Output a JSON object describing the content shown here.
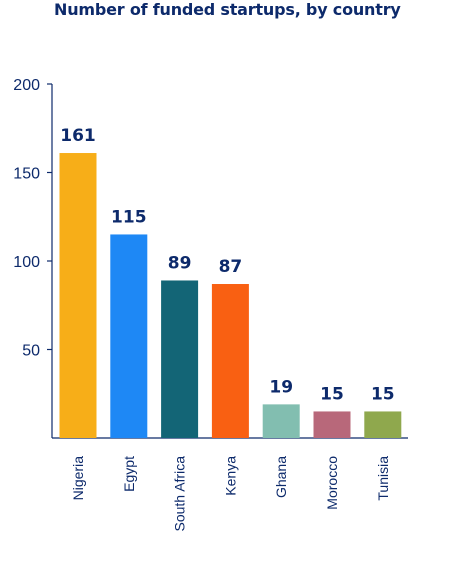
{
  "chart_data": {
    "type": "bar",
    "title": "Number of funded startups, by country",
    "xlabel": "",
    "ylabel": "",
    "ylim": [
      0,
      200
    ],
    "yticks": [
      50,
      100,
      150,
      200
    ],
    "categories": [
      "Nigeria",
      "Egypt",
      "South Africa",
      "Kenya",
      "Ghana",
      "Morocco",
      "Tunisia"
    ],
    "values": [
      161,
      115,
      89,
      87,
      19,
      15,
      15
    ],
    "colors": [
      "#f7ae18",
      "#1e88f5",
      "#136576",
      "#f96012",
      "#82beb0",
      "#b8687a",
      "#8fa84d"
    ],
    "data_labels": true,
    "grid": false,
    "legend": "none"
  }
}
